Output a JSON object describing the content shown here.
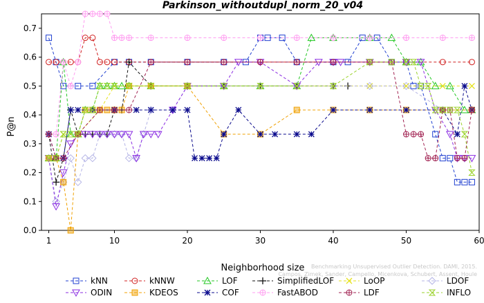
{
  "chart_data": {
    "type": "line",
    "title": "Parkinson_withoutdupl_norm_20_v04",
    "xlabel": "Neighborhood size",
    "ylabel": "P@n",
    "xlim": [
      0,
      60
    ],
    "ylim": [
      0,
      0.75
    ],
    "xticks": [
      1,
      10,
      20,
      30,
      40,
      50,
      60
    ],
    "yticks": [
      0.0,
      0.1,
      0.2,
      0.3,
      0.4,
      0.5,
      0.6,
      0.7
    ],
    "grid": false,
    "legend_position": "bottom",
    "watermark": "Benchmarking Unsupervised Outlier Detection. DAMI, 2015. Campos, Zimek, Sander, Campello, Micenkova, Schubert, Assent, Houle",
    "series": [
      {
        "name": "kNN",
        "color": "#1f3fd0",
        "marker": "square",
        "x": [
          1,
          2,
          3,
          5,
          7,
          10,
          12,
          15,
          20,
          25,
          28,
          30,
          31,
          33,
          35,
          40,
          42,
          44,
          46,
          48,
          50,
          51,
          52,
          54,
          55,
          56,
          57,
          58,
          59
        ],
        "y": [
          0.667,
          0.583,
          0.5,
          0.5,
          0.5,
          0.583,
          0.583,
          0.583,
          0.583,
          0.583,
          0.583,
          0.667,
          0.667,
          0.667,
          0.583,
          0.583,
          0.583,
          0.667,
          0.667,
          0.583,
          0.583,
          0.5,
          0.5,
          0.333,
          0.25,
          0.25,
          0.167,
          0.167,
          0.167
        ]
      },
      {
        "name": "kNNW",
        "color": "#d02020",
        "marker": "circle",
        "x": [
          1,
          2,
          3,
          4,
          5,
          6,
          7,
          8,
          9,
          10,
          12,
          15,
          20,
          25,
          30,
          35,
          40,
          45,
          50,
          55,
          59
        ],
        "y": [
          0.583,
          0.583,
          0.583,
          0.583,
          0.583,
          0.667,
          0.667,
          0.583,
          0.583,
          0.583,
          0.583,
          0.583,
          0.583,
          0.583,
          0.583,
          0.583,
          0.583,
          0.583,
          0.583,
          0.583,
          0.583
        ]
      },
      {
        "name": "LOF",
        "color": "#22c722",
        "marker": "triangle",
        "x": [
          1,
          2,
          3,
          4,
          5,
          6,
          7,
          8,
          9,
          10,
          11,
          12,
          15,
          20,
          25,
          30,
          35,
          37,
          40,
          45,
          48,
          50,
          52,
          54,
          56,
          58,
          59
        ],
        "y": [
          0.25,
          0.25,
          0.583,
          0.333,
          0.333,
          0.417,
          0.417,
          0.5,
          0.5,
          0.5,
          0.5,
          0.5,
          0.5,
          0.5,
          0.5,
          0.5,
          0.5,
          0.667,
          0.667,
          0.667,
          0.667,
          0.583,
          0.583,
          0.5,
          0.5,
          0.417,
          0.417
        ]
      },
      {
        "name": "SimplifiedLOF",
        "color": "#111111",
        "marker": "plus",
        "x": [
          1,
          2,
          3,
          4,
          5,
          6,
          7,
          8,
          9,
          10,
          11,
          12,
          15,
          20,
          25,
          30,
          35,
          40,
          42
        ],
        "y": [
          0.333,
          0.167,
          0.25,
          0.417,
          0.333,
          0.333,
          0.333,
          0.333,
          0.333,
          0.417,
          0.417,
          0.583,
          0.5,
          0.5,
          0.5,
          0.5,
          0.5,
          0.5,
          0.5
        ]
      },
      {
        "name": "LoOP",
        "color": "#e6e21a",
        "marker": "x",
        "x": [
          1,
          2,
          3,
          5,
          8,
          10,
          12,
          15,
          20,
          25,
          30,
          35,
          40,
          45,
          50,
          55,
          59
        ],
        "y": [
          0.25,
          0.25,
          0.333,
          0.333,
          0.417,
          0.5,
          0.5,
          0.5,
          0.5,
          0.5,
          0.5,
          0.5,
          0.5,
          0.5,
          0.5,
          0.5,
          0.5
        ]
      },
      {
        "name": "LDOF",
        "color": "#b4b4e6",
        "marker": "diamond",
        "x": [
          1,
          2,
          3,
          4,
          5,
          6,
          7,
          8,
          9,
          10,
          11,
          12,
          13,
          14,
          15,
          18,
          20,
          25,
          30,
          35,
          40,
          45,
          50,
          55,
          59
        ],
        "y": [
          0.25,
          0.1,
          0.167,
          0.25,
          0.167,
          0.25,
          0.25,
          0.333,
          0.333,
          0.333,
          0.333,
          0.25,
          0.25,
          0.333,
          0.417,
          0.417,
          0.5,
          0.5,
          0.5,
          0.5,
          0.5,
          0.5,
          0.5,
          0.417,
          0.417
        ]
      },
      {
        "name": "ODIN",
        "color": "#8a2be2",
        "marker": "triangle-down",
        "x": [
          1,
          2,
          3,
          4,
          5,
          6,
          7,
          8,
          9,
          10,
          11,
          12,
          13,
          14,
          15,
          16,
          18,
          20,
          25,
          27,
          30,
          35,
          38,
          40,
          41,
          45,
          50,
          52,
          54,
          56,
          57,
          58,
          59
        ],
        "y": [
          0.25,
          0.083,
          0.2,
          0.3,
          0.333,
          0.333,
          0.333,
          0.333,
          0.333,
          0.333,
          0.333,
          0.333,
          0.25,
          0.333,
          0.333,
          0.333,
          0.417,
          0.5,
          0.5,
          0.583,
          0.583,
          0.5,
          0.583,
          0.583,
          0.583,
          0.583,
          0.583,
          0.583,
          0.417,
          0.333,
          0.25,
          0.25,
          0.25
        ]
      },
      {
        "name": "KDEOS",
        "color": "#f0a000",
        "marker": "square-filled",
        "x": [
          1,
          2,
          3,
          4,
          5,
          6,
          7,
          8,
          9,
          10,
          11,
          12,
          15,
          20,
          25,
          30,
          35,
          40,
          45,
          50,
          55,
          59
        ],
        "y": [
          0.25,
          0.25,
          0.167,
          0.0,
          0.333,
          0.417,
          0.417,
          0.417,
          0.417,
          0.417,
          0.417,
          0.5,
          0.5,
          0.5,
          0.333,
          0.333,
          0.417,
          0.417,
          0.417,
          0.417,
          0.417,
          0.417
        ]
      },
      {
        "name": "COF",
        "color": "#0a0a8c",
        "marker": "star",
        "x": [
          1,
          2,
          3,
          4,
          5,
          7,
          10,
          13,
          15,
          18,
          20,
          21,
          22,
          23,
          24,
          25,
          27,
          30,
          32,
          35,
          37,
          40,
          45,
          50,
          55,
          57,
          58,
          59
        ],
        "y": [
          0.333,
          0.25,
          0.25,
          0.417,
          0.417,
          0.417,
          0.417,
          0.417,
          0.417,
          0.417,
          0.417,
          0.25,
          0.25,
          0.25,
          0.25,
          0.333,
          0.417,
          0.333,
          0.333,
          0.333,
          0.333,
          0.417,
          0.417,
          0.417,
          0.417,
          0.333,
          0.5,
          0.417
        ]
      },
      {
        "name": "FastABOD",
        "color": "#ff9cf0",
        "marker": "plus-small",
        "x": [
          1,
          2,
          3,
          4,
          5,
          6,
          7,
          8,
          9,
          10,
          11,
          12,
          15,
          20,
          25,
          30,
          35,
          40,
          45,
          50,
          55,
          59
        ],
        "y": [
          0.333,
          0.333,
          0.583,
          0.5,
          0.583,
          0.75,
          0.75,
          0.75,
          0.75,
          0.667,
          0.667,
          0.667,
          0.667,
          0.667,
          0.667,
          0.667,
          0.667,
          0.667,
          0.667,
          0.667,
          0.667,
          0.667
        ]
      },
      {
        "name": "LDF",
        "color": "#a02050",
        "marker": "circle-plus",
        "x": [
          1,
          2,
          3,
          5,
          8,
          10,
          12,
          15,
          20,
          25,
          30,
          35,
          40,
          45,
          48,
          50,
          51,
          52,
          53,
          54,
          55,
          56,
          57,
          58,
          59
        ],
        "y": [
          0.333,
          0.25,
          0.25,
          0.333,
          0.417,
          0.417,
          0.417,
          0.583,
          0.583,
          0.583,
          0.583,
          0.583,
          0.583,
          0.583,
          0.583,
          0.333,
          0.333,
          0.333,
          0.25,
          0.25,
          0.417,
          0.417,
          0.25,
          0.25,
          0.417
        ]
      },
      {
        "name": "INFLO",
        "color": "#9ad22a",
        "marker": "hourglass",
        "x": [
          1,
          2,
          3,
          4,
          5,
          6,
          7,
          8,
          9,
          10,
          12,
          15,
          20,
          25,
          30,
          35,
          40,
          45,
          48,
          50,
          51,
          52,
          53,
          54,
          55,
          56,
          57,
          58,
          59
        ],
        "y": [
          0.25,
          0.25,
          0.333,
          0.333,
          0.333,
          0.417,
          0.417,
          0.5,
          0.5,
          0.5,
          0.5,
          0.5,
          0.5,
          0.5,
          0.5,
          0.5,
          0.5,
          0.583,
          0.583,
          0.583,
          0.583,
          0.5,
          0.5,
          0.417,
          0.417,
          0.417,
          0.417,
          0.333,
          0.2
        ]
      }
    ]
  }
}
